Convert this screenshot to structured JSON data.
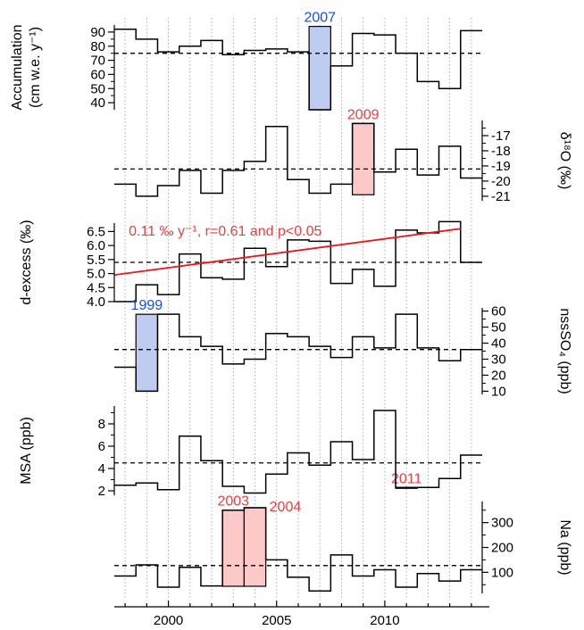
{
  "chart_data": {
    "type": "line",
    "x_axis": {
      "range": [
        1997.5,
        2014.5
      ],
      "ticks": [
        2000,
        2005,
        2010
      ],
      "tick_labels": [
        "2000",
        "2005",
        "2010"
      ]
    },
    "panels": [
      {
        "id": "accumulation",
        "ylabel_lines": [
          "Accumulation",
          "(cm w.e. y⁻¹)"
        ],
        "axis_side": "left",
        "ylim": [
          35,
          95
        ],
        "ticks": [
          40,
          50,
          60,
          70,
          80,
          90
        ],
        "minor_ticks": [
          45,
          55,
          65,
          75,
          85
        ],
        "mean": 75,
        "x": [
          1998,
          1999,
          2000,
          2001,
          2002,
          2003,
          2004,
          2005,
          2006,
          2007,
          2008,
          2009,
          2010,
          2011,
          2012,
          2013,
          2014
        ],
        "values": [
          92,
          85,
          76,
          80,
          84,
          74,
          77,
          78,
          76,
          35,
          66,
          89,
          88,
          75,
          55,
          50,
          91
        ],
        "highlights": [
          {
            "year": 2007,
            "label": "2007",
            "color": "#bfccf2",
            "label_color": "#1a4fd6"
          }
        ]
      },
      {
        "id": "d18O",
        "ylabel_lines": [
          "δ¹⁸O (‰)"
        ],
        "axis_side": "right",
        "ylim": [
          -21.3,
          -16.0
        ],
        "ticks": [
          -21,
          -20,
          -19,
          -18,
          -17
        ],
        "tick_labels": [
          "-21",
          "-20",
          "-19",
          "-18",
          "-17"
        ],
        "minor_ticks": [
          -20.5,
          -19.5,
          -18.5,
          -17.5,
          -16.5
        ],
        "mean": -19.2,
        "x": [
          1998,
          1999,
          2000,
          2001,
          2002,
          2003,
          2004,
          2005,
          2006,
          2007,
          2008,
          2009,
          2010,
          2011,
          2012,
          2013,
          2014
        ],
        "values": [
          -20.2,
          -21.0,
          -20.3,
          -19.3,
          -20.8,
          -19.3,
          -18.7,
          -16.4,
          -19.9,
          -20.8,
          -20.2,
          -16.2,
          -19.4,
          -17.9,
          -19.6,
          -17.7,
          -19.8
        ],
        "highlights": [
          {
            "year": 2009,
            "label": "2009",
            "color": "#fcc8c8",
            "label_color": "#e84040"
          }
        ]
      },
      {
        "id": "dexcess",
        "ylabel_lines": [
          "d-excess (‰)"
        ],
        "axis_side": "left",
        "ylim": [
          4.0,
          6.8
        ],
        "ticks": [
          4.0,
          4.5,
          5.0,
          5.5,
          6.0,
          6.5
        ],
        "tick_labels": [
          "4.0",
          "4.5",
          "5.0",
          "5.5",
          "6.0",
          "6.5"
        ],
        "minor_ticks": [],
        "mean": 5.4,
        "x": [
          1998,
          1999,
          2000,
          2001,
          2002,
          2003,
          2004,
          2005,
          2006,
          2007,
          2008,
          2009,
          2010,
          2011,
          2012,
          2013,
          2014
        ],
        "values": [
          4.0,
          4.6,
          4.25,
          5.7,
          4.85,
          4.8,
          5.9,
          5.25,
          6.2,
          6.15,
          4.65,
          5.15,
          4.55,
          6.55,
          6.45,
          6.85,
          5.4
        ],
        "trend": {
          "x": [
            1997.5,
            2013.5
          ],
          "y": [
            4.95,
            6.6
          ],
          "color": "#e8191e"
        },
        "annotation": {
          "text": "0.11 ‰ y⁻¹, r=0.61 and p<0.05",
          "color": "#e84040"
        },
        "highlights": []
      },
      {
        "id": "nssSO4",
        "ylabel_lines": [
          "nssSO₄ (ppb)"
        ],
        "axis_side": "right",
        "ylim": [
          8,
          62
        ],
        "ticks": [
          10,
          20,
          30,
          40,
          50,
          60
        ],
        "minor_ticks": [
          15,
          25,
          35,
          45,
          55
        ],
        "mean": 36,
        "x": [
          1998,
          1999,
          2000,
          2001,
          2002,
          2003,
          2004,
          2005,
          2006,
          2007,
          2008,
          2009,
          2010,
          2011,
          2012,
          2013,
          2014
        ],
        "values": [
          25,
          10,
          58,
          44,
          38,
          27,
          30,
          46,
          44,
          38,
          31,
          44,
          37,
          58,
          37,
          29,
          36
        ],
        "highlights": [
          {
            "year": 1999,
            "label": "1999",
            "color": "#bfccf2",
            "label_color": "#1a4fd6"
          }
        ]
      },
      {
        "id": "MSA",
        "ylabel_lines": [
          "MSA (ppb)"
        ],
        "axis_side": "left",
        "ylim": [
          1.6,
          9.6
        ],
        "ticks": [
          2,
          4,
          6,
          8
        ],
        "minor_ticks": [
          3,
          5,
          7,
          9
        ],
        "mean": 4.5,
        "x": [
          1998,
          1999,
          2000,
          2001,
          2002,
          2003,
          2004,
          2005,
          2006,
          2007,
          2008,
          2009,
          2010,
          2011,
          2012,
          2013,
          2014
        ],
        "values": [
          2.5,
          2.7,
          2.1,
          6.9,
          4.7,
          2.4,
          1.8,
          3.5,
          5.4,
          4.3,
          6.4,
          4.8,
          9.2,
          2.3,
          2.3,
          3.1,
          5.2
        ],
        "highlights": [
          {
            "year": 2011,
            "label": "2011",
            "color": "#fcc8c8",
            "label_color": "#e84040"
          }
        ]
      },
      {
        "id": "Na",
        "ylabel_lines": [
          "Na (ppb)"
        ],
        "axis_side": "right",
        "ylim": [
          15,
          385
        ],
        "ticks": [
          100,
          200,
          300
        ],
        "minor_ticks": [
          50,
          150,
          250,
          350
        ],
        "mean": 127,
        "x": [
          1998,
          1999,
          2000,
          2001,
          2002,
          2003,
          2004,
          2005,
          2006,
          2007,
          2008,
          2009,
          2010,
          2011,
          2012,
          2013,
          2014
        ],
        "values": [
          85,
          130,
          40,
          120,
          45,
          350,
          360,
          150,
          80,
          25,
          170,
          85,
          110,
          40,
          95,
          65,
          110
        ],
        "highlights": [
          {
            "year": 2003,
            "label": "2003",
            "color": "#fcc8c8",
            "label_color": "#e84040"
          },
          {
            "year": 2004,
            "label": "2004",
            "color": "#fcc8c8",
            "label_color": "#e84040"
          }
        ]
      }
    ]
  }
}
